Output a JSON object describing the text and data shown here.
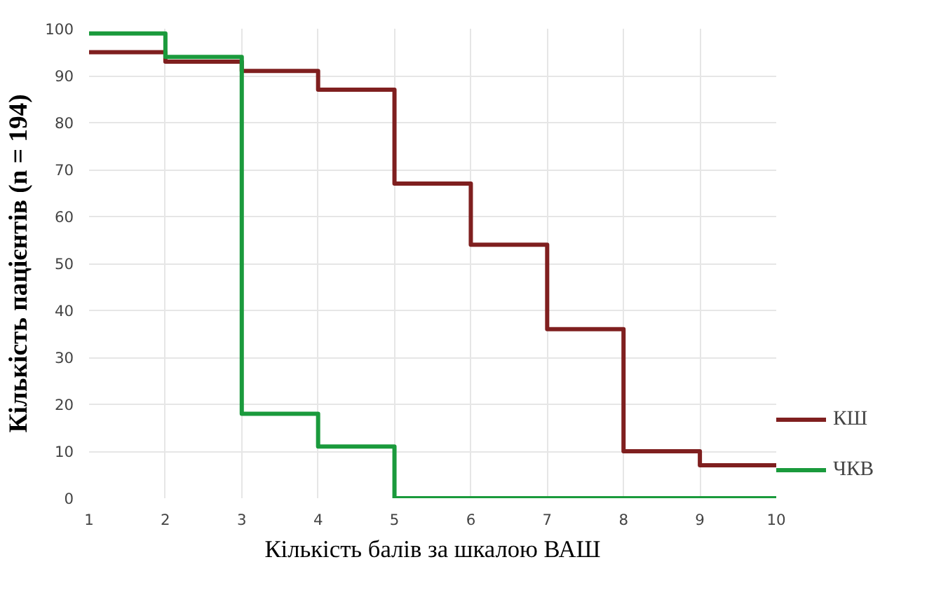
{
  "chart_data": {
    "type": "step",
    "xlabel": "Кількість балів за шкалою ВАШ",
    "ylabel": "Кількість пацієнтів (n = 194)",
    "x": [
      1,
      2,
      3,
      4,
      5,
      6,
      7,
      8,
      9,
      10
    ],
    "series": [
      {
        "name": "КШ",
        "color": "#7f1f1f",
        "values": [
          95,
          93,
          91,
          87,
          67,
          54,
          36,
          10,
          7,
          7
        ]
      },
      {
        "name": "ЧКВ",
        "color": "#1a9a3c",
        "values": [
          99,
          94,
          18,
          11,
          0,
          0,
          0,
          0,
          0,
          0
        ]
      }
    ],
    "xlim": [
      1,
      10
    ],
    "ylim": [
      0,
      100
    ],
    "xticks": [
      1,
      2,
      3,
      4,
      5,
      6,
      7,
      8,
      9,
      10
    ],
    "yticks": [
      0,
      10,
      20,
      30,
      40,
      50,
      60,
      70,
      80,
      90,
      100
    ],
    "grid": true,
    "legend": "right"
  }
}
